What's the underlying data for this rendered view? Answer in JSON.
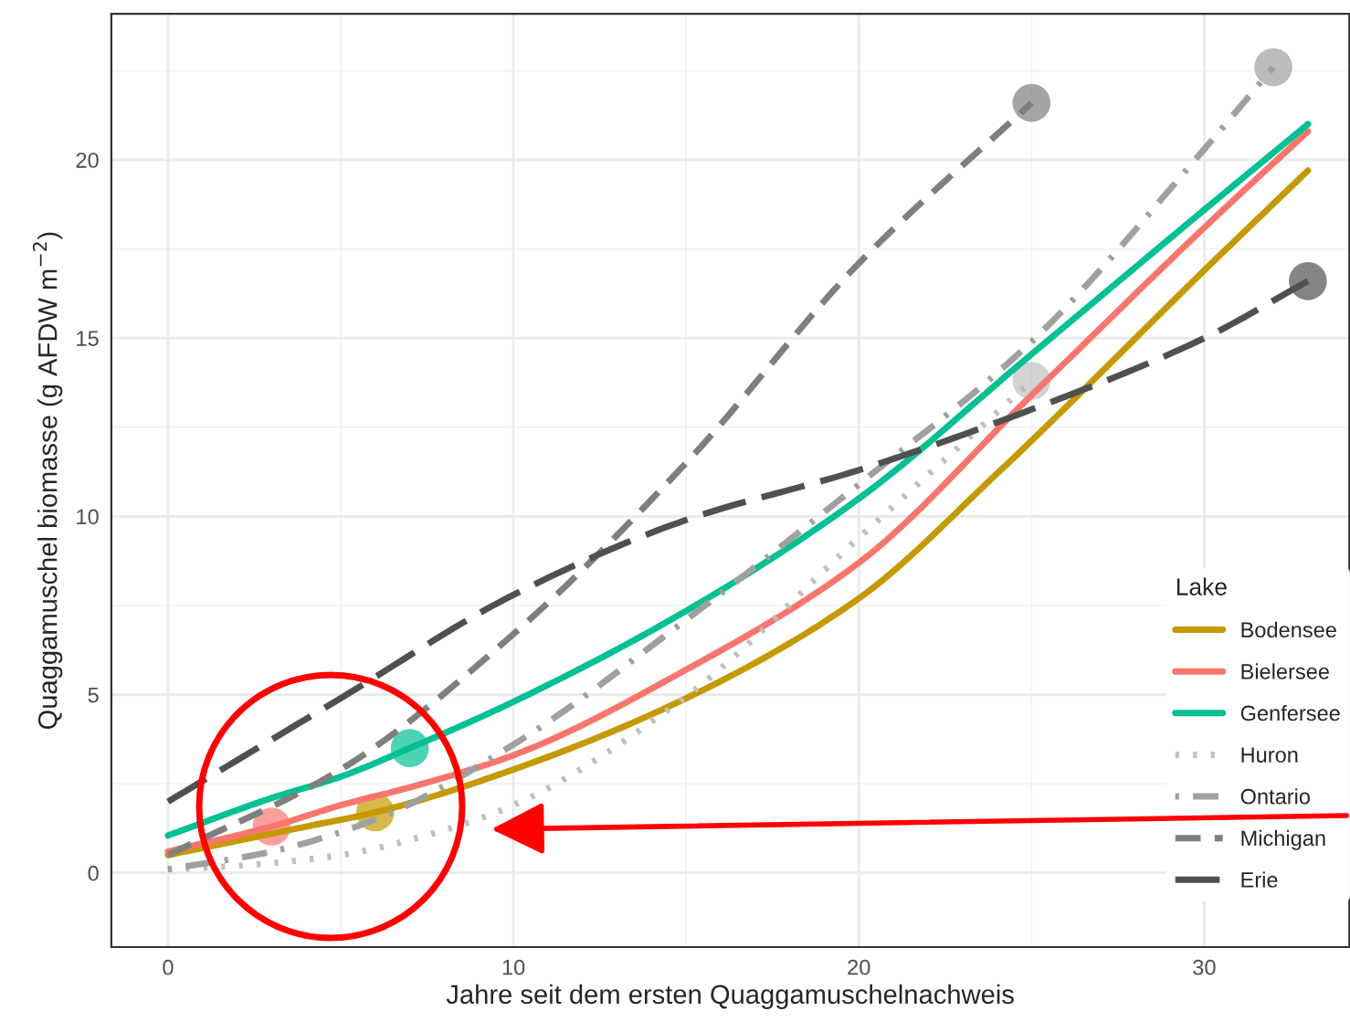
{
  "chart_data": {
    "type": "line",
    "xlabel": "Jahre seit dem ersten Quaggamuschelnachweis",
    "ylabel": "Quaggamuschel biomasse (g AFDW m$^{−2}$)",
    "legend_title": "Lake",
    "xlim": [
      -1.64,
      34.2
    ],
    "ylim": [
      -2.08,
      24.1
    ],
    "xticks": [
      0,
      10,
      20,
      30
    ],
    "yticks": [
      0,
      5,
      10,
      15,
      20
    ],
    "grid": true,
    "legend": "lower right",
    "series": [
      {
        "name": "Bodensee",
        "color": "#c49a00",
        "line_style": "solid",
        "x": [
          0,
          2,
          4,
          6,
          10,
          15,
          20,
          24,
          30,
          33
        ],
        "values": [
          0.5,
          0.9,
          1.3,
          1.7,
          2.9,
          4.9,
          7.7,
          11.2,
          16.9,
          19.7
        ]
      },
      {
        "name": "Bielersee",
        "color": "#f8766d",
        "line_style": "solid",
        "x": [
          0,
          3,
          5,
          7,
          10,
          15,
          20,
          25,
          30,
          33
        ],
        "values": [
          0.6,
          1.3,
          1.9,
          2.4,
          3.3,
          5.7,
          8.7,
          13.4,
          18.1,
          20.8
        ]
      },
      {
        "name": "Genfersee",
        "color": "#00c094",
        "line_style": "solid",
        "x": [
          0,
          3,
          5,
          7,
          10,
          15,
          20,
          25,
          30,
          33
        ],
        "values": [
          1.05,
          2.1,
          2.7,
          3.5,
          4.8,
          7.35,
          10.5,
          14.55,
          18.6,
          21.0
        ]
      },
      {
        "name": "Huron",
        "color": "#c0c0c0",
        "line_style": "dotted",
        "x": [
          0,
          2,
          5,
          8,
          10,
          15,
          20,
          25
        ],
        "values": [
          0.1,
          0.2,
          0.5,
          1.2,
          1.9,
          4.95,
          9.4,
          13.8
        ]
      },
      {
        "name": "Ontario",
        "color": "#a0a0a0",
        "line_style": "dashdot",
        "x": [
          0,
          3,
          6,
          10,
          15,
          20,
          25,
          30,
          32
        ],
        "values": [
          0.1,
          0.6,
          1.5,
          3.6,
          7.1,
          10.9,
          14.9,
          20.3,
          22.6
        ]
      },
      {
        "name": "Michigan",
        "color": "#7f7f7f",
        "line_style": "dashed",
        "x": [
          0,
          5,
          10,
          15,
          20,
          25
        ],
        "values": [
          0.5,
          2.9,
          6.7,
          11.5,
          17.1,
          21.6
        ]
      },
      {
        "name": "Erie",
        "color": "#505050",
        "line_style": "longdash",
        "x": [
          0,
          5,
          10,
          15,
          20,
          25,
          30,
          33
        ],
        "values": [
          2.0,
          4.9,
          7.8,
          9.9,
          11.3,
          13.0,
          15.0,
          16.6
        ]
      },
      {
        "type": "scatter",
        "color": "#c49a00",
        "x": [
          6
        ],
        "values": [
          1.7
        ]
      },
      {
        "type": "scatter",
        "color": "#f8766d",
        "x": [
          3
        ],
        "values": [
          1.3
        ]
      },
      {
        "type": "scatter",
        "color": "#00c094",
        "x": [
          7
        ],
        "values": [
          3.5
        ]
      },
      {
        "type": "scatter",
        "color": "#c0c0c0",
        "x": [
          25
        ],
        "values": [
          13.8
        ]
      },
      {
        "type": "scatter",
        "color": "#a0a0a0",
        "x": [
          32
        ],
        "values": [
          22.6
        ]
      },
      {
        "type": "scatter",
        "color": "#7f7f7f",
        "x": [
          25
        ],
        "values": [
          21.6
        ]
      },
      {
        "type": "scatter",
        "color": "#505050",
        "x": [
          33
        ],
        "values": [
          16.6
        ]
      }
    ]
  }
}
